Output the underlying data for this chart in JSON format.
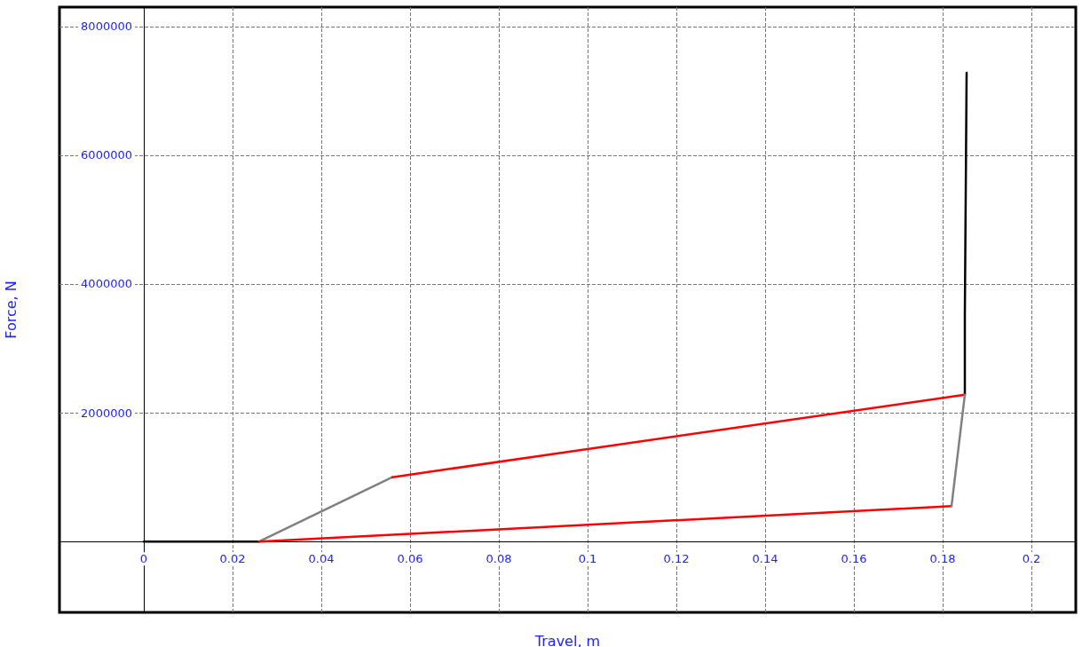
{
  "chart_data": {
    "type": "line",
    "xlabel": "Travel, m",
    "ylabel": "Force, N",
    "series": [
      {
        "color": "#000000",
        "x": [
          0,
          0.026
        ],
        "values": [
          0,
          0
        ]
      },
      {
        "color": "#808080",
        "x": [
          0.026,
          0.056
        ],
        "values": [
          0,
          1000000
        ]
      },
      {
        "color": "#ff0000",
        "x": [
          0.056,
          0.185
        ],
        "values": [
          1000000,
          2280000
        ]
      },
      {
        "color": "#000000",
        "x": [
          0.185,
          0.185,
          0.1852,
          0.1854
        ],
        "values": [
          2280000,
          3500000,
          5400000,
          7280000
        ]
      },
      {
        "color": "#ff0000",
        "x": [
          0.026,
          0.182
        ],
        "values": [
          0,
          550000
        ]
      },
      {
        "color": "#808080",
        "x": [
          0.182,
          0.185
        ],
        "values": [
          550000,
          2280000
        ]
      }
    ],
    "xlim": [
      -0.019,
      0.21
    ],
    "xticks": [
      0,
      0.02,
      0.04,
      0.06,
      0.08,
      0.1,
      0.12,
      0.14,
      0.16,
      0.18,
      0.2
    ],
    "ylim": [
      -1100000,
      8300000
    ],
    "yticks": [
      {
        "value": 0,
        "label": null
      },
      2000000,
      4000000,
      6000000,
      8000000
    ],
    "grid": true,
    "marker": "none",
    "line_style": "solid"
  }
}
